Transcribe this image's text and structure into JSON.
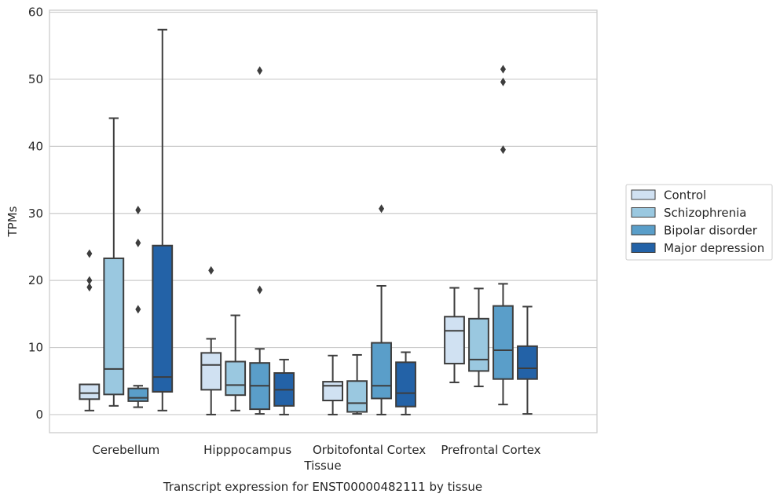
{
  "chart_data": {
    "type": "box",
    "title": "",
    "caption": "Transcript expression for ENST00000482111 by tissue",
    "xlabel": "Tissue",
    "ylabel": "TPMs",
    "ylim": [
      -2.7,
      60.3
    ],
    "yticks": [
      0,
      10,
      20,
      30,
      40,
      50,
      60
    ],
    "grid": "horizontal",
    "legend_position": "right",
    "categories": [
      "Cerebellum",
      "Hipppocampus",
      "Orbitofontal Cortex",
      "Prefrontal Cortex"
    ],
    "series": [
      {
        "name": "Control",
        "color": "#d0e1f2",
        "boxes": [
          {
            "whislo": 0.6,
            "q1": 2.3,
            "med": 3.2,
            "q3": 4.5,
            "whishi": 4.5,
            "fliers": [
              24.0,
              20.0,
              19.0
            ]
          },
          {
            "whislo": 0.0,
            "q1": 3.7,
            "med": 7.4,
            "q3": 9.2,
            "whishi": 11.3,
            "fliers": [
              21.5
            ]
          },
          {
            "whislo": 0.0,
            "q1": 2.1,
            "med": 4.3,
            "q3": 4.9,
            "whishi": 8.8,
            "fliers": []
          },
          {
            "whislo": 4.8,
            "q1": 7.6,
            "med": 12.5,
            "q3": 14.6,
            "whishi": 18.9,
            "fliers": []
          }
        ]
      },
      {
        "name": "Schizophrenia",
        "color": "#9ac8e0",
        "boxes": [
          {
            "whislo": 1.3,
            "q1": 3.0,
            "med": 6.8,
            "q3": 23.3,
            "whishi": 44.2,
            "fliers": []
          },
          {
            "whislo": 0.6,
            "q1": 2.9,
            "med": 4.4,
            "q3": 7.9,
            "whishi": 14.8,
            "fliers": []
          },
          {
            "whislo": 0.1,
            "q1": 0.4,
            "med": 1.7,
            "q3": 5.0,
            "whishi": 8.9,
            "fliers": []
          },
          {
            "whislo": 4.2,
            "q1": 6.5,
            "med": 8.2,
            "q3": 14.3,
            "whishi": 18.8,
            "fliers": []
          }
        ]
      },
      {
        "name": "Bipolar disorder",
        "color": "#5a9ec9",
        "boxes": [
          {
            "whislo": 1.1,
            "q1": 2.0,
            "med": 2.5,
            "q3": 3.9,
            "whishi": 4.3,
            "fliers": [
              30.5,
              25.6,
              15.7
            ]
          },
          {
            "whislo": 0.1,
            "q1": 0.8,
            "med": 4.3,
            "q3": 7.7,
            "whishi": 9.8,
            "fliers": [
              51.3,
              18.6
            ]
          },
          {
            "whislo": 0.0,
            "q1": 2.4,
            "med": 4.3,
            "q3": 10.7,
            "whishi": 19.2,
            "fliers": [
              30.7
            ]
          },
          {
            "whislo": 1.5,
            "q1": 5.3,
            "med": 9.6,
            "q3": 16.2,
            "whishi": 19.5,
            "fliers": [
              49.6,
              51.5,
              39.5
            ]
          }
        ]
      },
      {
        "name": "Major depression",
        "color": "#2362a7",
        "boxes": [
          {
            "whislo": 0.6,
            "q1": 3.4,
            "med": 5.6,
            "q3": 25.2,
            "whishi": 57.4,
            "fliers": []
          },
          {
            "whislo": 0.0,
            "q1": 1.3,
            "med": 3.7,
            "q3": 6.2,
            "whishi": 8.2,
            "fliers": []
          },
          {
            "whislo": 0.0,
            "q1": 1.2,
            "med": 3.2,
            "q3": 7.8,
            "whishi": 9.3,
            "fliers": []
          },
          {
            "whislo": 0.1,
            "q1": 5.3,
            "med": 6.9,
            "q3": 10.2,
            "whishi": 16.1,
            "fliers": []
          }
        ]
      }
    ]
  }
}
